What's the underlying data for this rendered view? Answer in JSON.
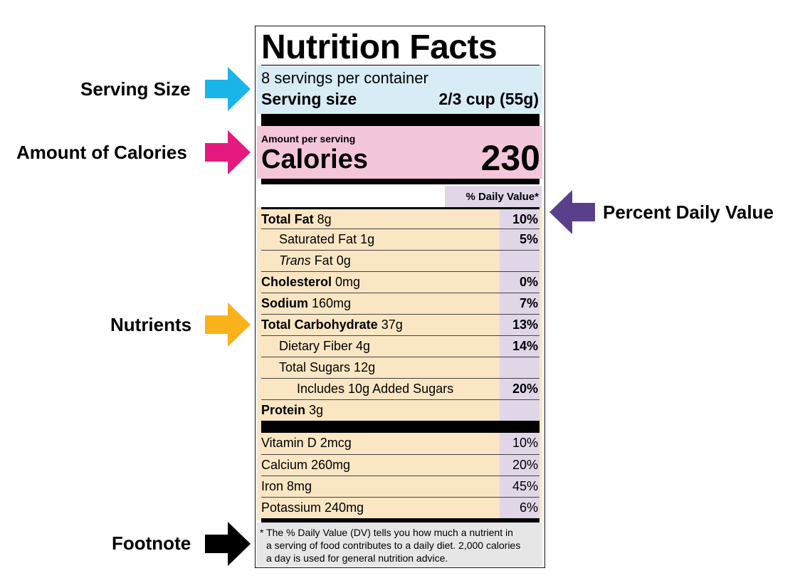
{
  "callouts": {
    "serving_size": "Serving Size",
    "calories": "Amount of Calories",
    "percent_dv": "Percent Daily Value",
    "nutrients": "Nutrients",
    "footnote": "Footnote"
  },
  "colors": {
    "serving_zone": "#d8ecf6",
    "calories_zone": "#f4c6dc",
    "nutrients_zone": "#fbe6c4",
    "dv_column": "#e0d6e8",
    "footnote_zone": "#e6e6e6",
    "arrow_serving": "#1ab5e8",
    "arrow_calories": "#e6197e",
    "arrow_dv": "#5a3f8c",
    "arrow_nutrients": "#f9b21a",
    "arrow_footnote": "#000000"
  },
  "label": {
    "title": "Nutrition Facts",
    "servings_per_container": "8 servings per container",
    "serving_size_label": "Serving size",
    "serving_size_value": "2/3 cup (55g)",
    "amount_per_serving": "Amount per serving",
    "calories_label": "Calories",
    "calories_value": "230",
    "dv_header": "% Daily Value*",
    "nutrients": [
      {
        "bold": "Total Fat",
        "amount": " 8g",
        "pct": "10%"
      },
      {
        "plain": "Saturated Fat 1g",
        "pct": "5%"
      },
      {
        "italic": "Trans",
        "plain": " Fat 0g",
        "pct": ""
      },
      {
        "bold": "Cholesterol",
        "amount": " 0mg",
        "pct": "0%"
      },
      {
        "bold": "Sodium",
        "amount": " 160mg",
        "pct": "7%"
      },
      {
        "bold": "Total Carbohydrate",
        "amount": " 37g",
        "pct": "13%"
      },
      {
        "plain": "Dietary Fiber 4g",
        "pct": "14%"
      },
      {
        "plain": "Total Sugars 12g",
        "pct": ""
      },
      {
        "plain": "Includes 10g Added Sugars",
        "pct": "20%"
      },
      {
        "bold": "Protein",
        "amount": " 3g",
        "pct": ""
      }
    ],
    "vitamins": [
      {
        "plain": "Vitamin D 2mcg",
        "pct": "10%"
      },
      {
        "plain": "Calcium 260mg",
        "pct": "20%"
      },
      {
        "plain": "Iron 8mg",
        "pct": "45%"
      },
      {
        "plain": "Potassium 240mg",
        "pct": "6%"
      }
    ],
    "footnote_lines": [
      "* The % Daily Value (DV) tells you how much a nutrient in",
      "a serving of food contributes to a daily diet. 2,000 calories",
      "a day is used for general nutrition advice."
    ]
  }
}
